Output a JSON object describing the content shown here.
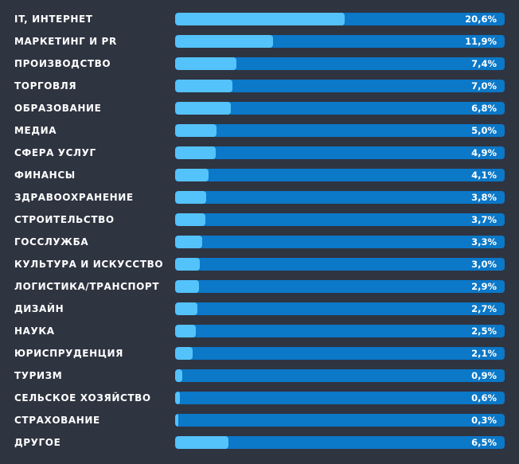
{
  "colors": {
    "background": "#2f3441",
    "track": "#0b78c8",
    "fill": "#54c2fb",
    "text": "#ffffff"
  },
  "chart_data": {
    "type": "bar",
    "orientation": "horizontal",
    "title": "",
    "xlabel": "",
    "ylabel": "",
    "xlim": [
      0,
      40
    ],
    "categories": [
      "IT, ИНТЕРНЕТ",
      "МАРКЕТИНГ И PR",
      "ПРОИЗВОДСТВО",
      "ТОРГОВЛЯ",
      "ОБРАЗОВАНИЕ",
      "МЕДИА",
      "СФЕРА УСЛУГ",
      "ФИНАНСЫ",
      "ЗДРАВООХРАНЕНИЕ",
      "СТРОИТЕЛЬСТВО",
      "ГОССЛУЖБА",
      "КУЛЬТУРА И ИСКУССТВО",
      "ЛОГИСТИКА/ТРАНСПОРТ",
      "ДИЗАЙН",
      "НАУКА",
      "ЮРИСПРУДЕНЦИЯ",
      "ТУРИЗМ",
      "СЕЛЬСКОЕ ХОЗЯЙСТВО",
      "СТРАХОВАНИЕ",
      "ДРУГОЕ"
    ],
    "values": [
      20.6,
      11.9,
      7.4,
      7.0,
      6.8,
      5.0,
      4.9,
      4.1,
      3.8,
      3.7,
      3.3,
      3.0,
      2.9,
      2.7,
      2.5,
      2.1,
      0.9,
      0.6,
      0.3,
      6.5
    ],
    "value_labels": [
      "20,6%",
      "11,9%",
      "7,4%",
      "7,0%",
      "6,8%",
      "5,0%",
      "4,9%",
      "4,1%",
      "3,8%",
      "3,7%",
      "3,3%",
      "3,0%",
      "2,9%",
      "2,7%",
      "2,5%",
      "2,1%",
      "0,9%",
      "0,6%",
      "0,3%",
      "6,5%"
    ],
    "grid": false,
    "legend": "none"
  }
}
